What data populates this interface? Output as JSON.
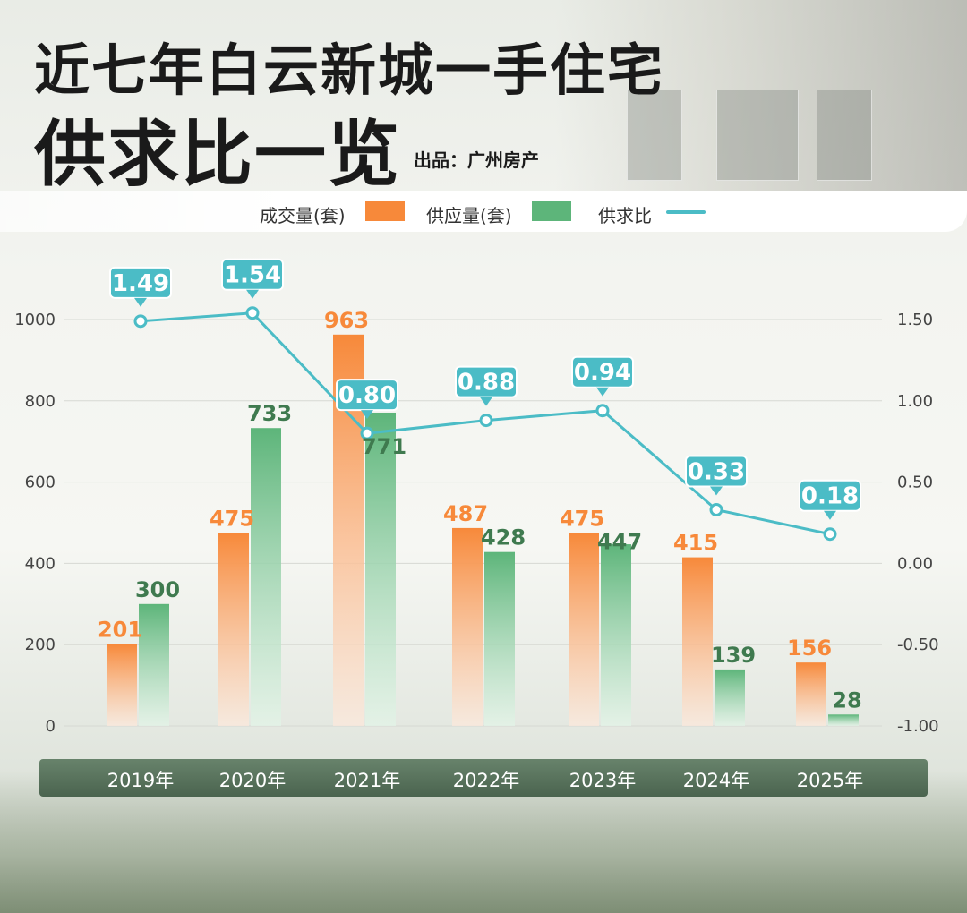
{
  "header": {
    "title_line1": "近七年白云新城一手住宅",
    "title_line2": "供求比一览",
    "source": "出品：广州房产"
  },
  "legend": {
    "sales_label": "成交量(套)",
    "supply_label": "供应量(套)",
    "ratio_label": "供求比"
  },
  "colors": {
    "sales": "#f7893a",
    "supply": "#5db57a",
    "ratio": "#4bbcc6",
    "sales_text": "#f7893a",
    "supply_text": "#3f7a4f",
    "axis_band": "#4a6650"
  },
  "chart_data": {
    "type": "bar",
    "categories": [
      "2019年",
      "2020年",
      "2021年",
      "2022年",
      "2023年",
      "2024年",
      "2025年"
    ],
    "series": [
      {
        "name": "成交量(套)",
        "type": "bar",
        "values": [
          201,
          475,
          963,
          487,
          475,
          415,
          156
        ]
      },
      {
        "name": "供应量(套)",
        "type": "bar",
        "values": [
          300,
          733,
          771,
          428,
          447,
          139,
          28
        ]
      },
      {
        "name": "供求比",
        "type": "line",
        "axis": "right",
        "values": [
          1.49,
          1.54,
          0.8,
          0.88,
          0.94,
          0.33,
          0.18
        ]
      }
    ],
    "value_labels": {
      "sales": [
        "201",
        "475",
        "963",
        "487",
        "475",
        "415",
        "156"
      ],
      "supply": [
        "300",
        "733",
        "771",
        "428",
        "447",
        "139",
        "28"
      ],
      "ratio": [
        "1.49",
        "1.54",
        "0.80",
        "0.88",
        "0.94",
        "0.33",
        "0.18"
      ]
    },
    "y_left": {
      "ylim": [
        0,
        1100
      ],
      "ticks": [
        "0",
        "200",
        "400",
        "600",
        "800",
        "1000"
      ]
    },
    "y_right": {
      "ylim": [
        -1.0,
        2.0
      ],
      "ticks": [
        "-1.00",
        "-0.50",
        "0.00",
        "0.50",
        "1.00",
        "1.50"
      ]
    },
    "grid": true,
    "legend_position": "top"
  }
}
